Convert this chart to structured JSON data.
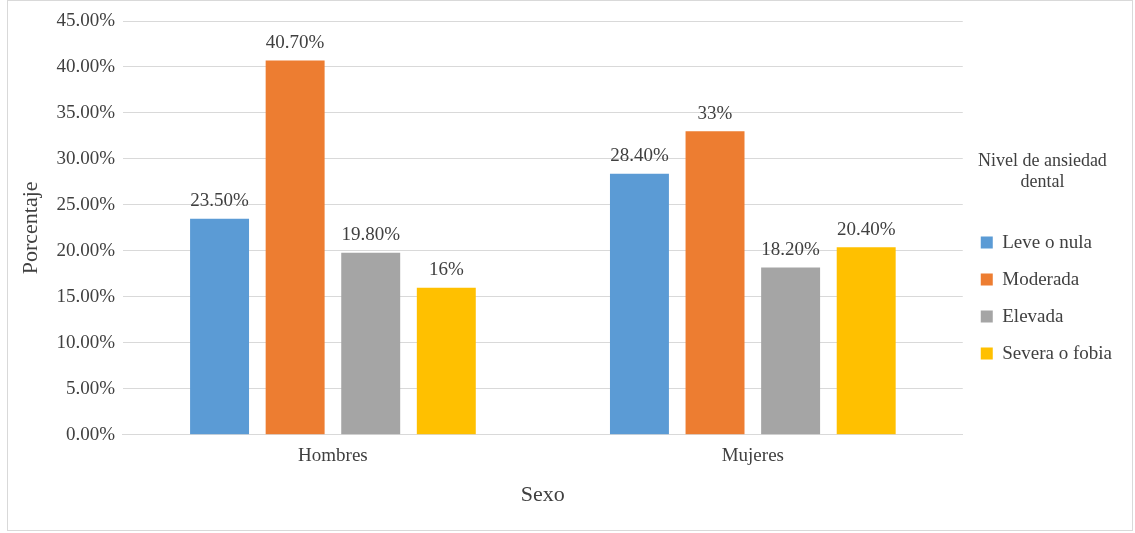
{
  "chart_data": {
    "type": "bar",
    "xlabel": "Sexo",
    "ylabel": "Porcentaje",
    "legend_title": "Nivel de ansiedad dental",
    "categories": [
      "Hombres",
      "Mujeres"
    ],
    "series": [
      {
        "name": "Leve o nula",
        "color": "#5b9bd5",
        "values": [
          23.5,
          28.4
        ],
        "value_labels": [
          "23.50%",
          "28.40%"
        ]
      },
      {
        "name": "Moderada",
        "color": "#ed7d31",
        "values": [
          40.7,
          33
        ],
        "value_labels": [
          "40.70%",
          "33%"
        ]
      },
      {
        "name": "Elevada",
        "color": "#a5a5a5",
        "values": [
          19.8,
          18.2
        ],
        "value_labels": [
          "19.80%",
          "18.20%"
        ]
      },
      {
        "name": "Severa o fobia",
        "color": "#ffc000",
        "values": [
          16,
          20.4
        ],
        "value_labels": [
          "16%",
          "20.40%"
        ]
      }
    ],
    "ylim": [
      0,
      45
    ],
    "yticks": [
      {
        "value": 0,
        "label": "0.00%"
      },
      {
        "value": 5,
        "label": "5.00%"
      },
      {
        "value": 10,
        "label": "10.00%"
      },
      {
        "value": 15,
        "label": "15.00%"
      },
      {
        "value": 20,
        "label": "20.00%"
      },
      {
        "value": 25,
        "label": "25.00%"
      },
      {
        "value": 30,
        "label": "30.00%"
      },
      {
        "value": 35,
        "label": "35.00%"
      },
      {
        "value": 40,
        "label": "40.00%"
      },
      {
        "value": 45,
        "label": "45.00%"
      }
    ],
    "grid": "y",
    "legend": "right"
  }
}
